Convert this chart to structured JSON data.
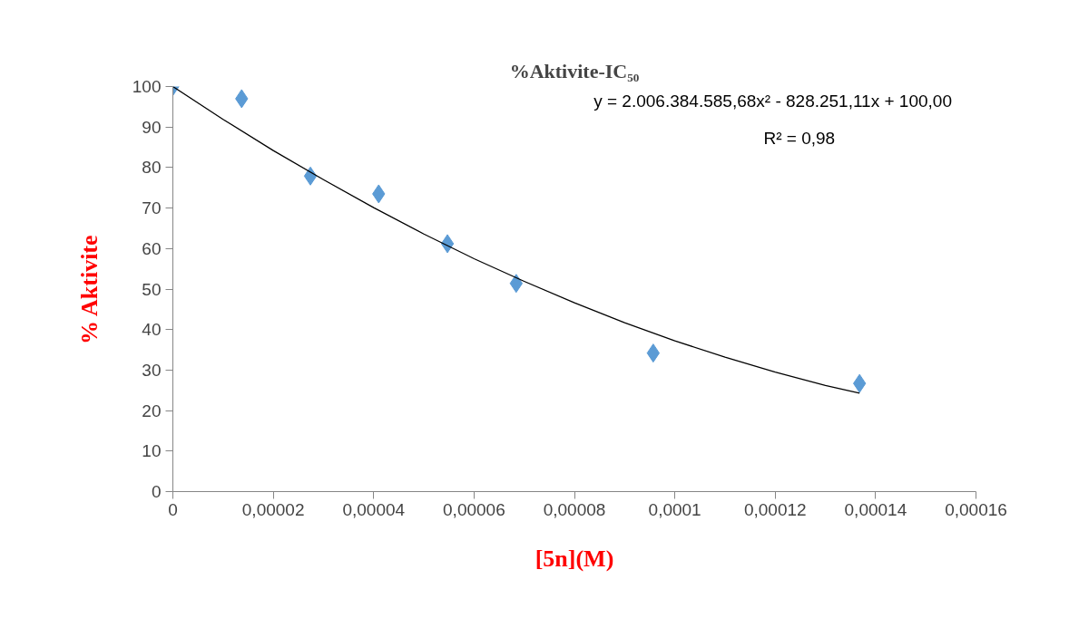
{
  "chart_data": {
    "type": "scatter",
    "title": "%Aktivite-IC₅₀",
    "xlabel": "[5n](M)",
    "ylabel": "% Aktivite",
    "series": [
      {
        "color": "#5b9bd5",
        "marker": "diamond",
        "x": [
          0,
          1.37e-05,
          2.74e-05,
          4.1e-05,
          5.47e-05,
          6.84e-05,
          9.57e-05,
          0.0001368
        ],
        "values": [
          100,
          97,
          77.9,
          73.5,
          61.2,
          51.4,
          34.2,
          26.7
        ]
      },
      {
        "type": "line",
        "color": "#000000",
        "marker": "none",
        "x": [
          0,
          1e-05,
          2e-05,
          3e-05,
          4e-05,
          5e-05,
          6e-05,
          7e-05,
          8e-05,
          9e-05,
          0.0001,
          0.00011,
          0.00012,
          0.00013,
          0.0001368
        ],
        "values": [
          100,
          91.9,
          84.2,
          77,
          70.1,
          63.6,
          57.5,
          51.9,
          46.6,
          41.7,
          37.2,
          33.2,
          29.5,
          26.2,
          24.3
        ]
      }
    ],
    "annotations": [
      "y = 2.006.384.585,68x² - 828.251,11x + 100,00",
      "R² = 0,98"
    ],
    "xlim": [
      0,
      0.00016
    ],
    "xticks": [
      0,
      {
        "value": 2e-05,
        "label": "0,00002"
      },
      {
        "value": 4e-05,
        "label": "0,00004"
      },
      {
        "value": 6e-05,
        "label": "0,00006"
      },
      {
        "value": 8e-05,
        "label": "0,00008"
      },
      {
        "value": 0.0001,
        "label": "0,0001"
      },
      {
        "value": 0.00012,
        "label": "0,00012"
      },
      {
        "value": 0.00014,
        "label": "0,00014"
      },
      {
        "value": 0.00016,
        "label": "0,00016"
      }
    ],
    "ylim": [
      0,
      100
    ],
    "yticks": [
      0,
      10,
      20,
      30,
      40,
      50,
      60,
      70,
      80,
      90,
      100
    ],
    "grid": false
  }
}
